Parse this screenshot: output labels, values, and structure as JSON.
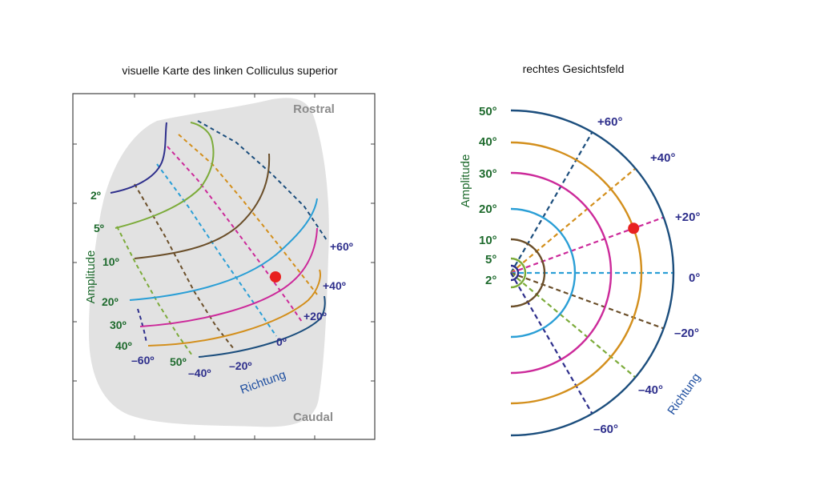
{
  "colors": {
    "amplitude_label": "#1f6b2e",
    "direction_label": "#2e2f8c",
    "axis_word": "#1f4fa0",
    "region_label": "#8c8c8c",
    "region_fill": "#e2e2e2",
    "marker": "#e8211f",
    "frame": "#444444"
  },
  "left_panel": {
    "title": "visuelle Karte des linken Colliculus superior",
    "rostral_label": "Rostral",
    "caudal_label": "Caudal",
    "amplitude_axis_label": "Amplitude",
    "direction_axis_label": "Richtung",
    "amplitude_labels": [
      "2º",
      "5º",
      "10º",
      "20º",
      "30º",
      "40º",
      "50º"
    ],
    "direction_labels": [
      "+60º",
      "+40º",
      "+20º",
      "0º",
      "–20º",
      "–40º",
      "–60º"
    ]
  },
  "right_panel": {
    "title": "rechtes Gesichtsfeld",
    "amplitude_axis_label": "Amplitude",
    "direction_axis_label": "Richtung",
    "amplitude_labels": [
      "50°",
      "40°",
      "30°",
      "20°",
      "10°",
      "5°",
      "2°"
    ],
    "direction_labels": [
      "+60°",
      "+40°",
      "+20°",
      "0°",
      "–20°",
      "–40°",
      "–60°"
    ]
  },
  "amplitude_series": [
    {
      "degrees": 2,
      "color": "#2e2f8c"
    },
    {
      "degrees": 5,
      "color": "#7cab3a"
    },
    {
      "degrees": 10,
      "color": "#6b4f2a"
    },
    {
      "degrees": 20,
      "color": "#2b9fd6"
    },
    {
      "degrees": 30,
      "color": "#cc2a9a"
    },
    {
      "degrees": 40,
      "color": "#d38f1c"
    },
    {
      "degrees": 50,
      "color": "#1c4e7d"
    }
  ],
  "direction_series": [
    {
      "degrees": 60,
      "color": "#1c4e7d"
    },
    {
      "degrees": 40,
      "color": "#d38f1c"
    },
    {
      "degrees": 20,
      "color": "#cc2a9a"
    },
    {
      "degrees": 0,
      "color": "#2b9fd6"
    },
    {
      "degrees": -20,
      "color": "#6b4f2a"
    },
    {
      "degrees": -40,
      "color": "#7cab3a"
    },
    {
      "degrees": -60,
      "color": "#2e2f8c"
    }
  ],
  "highlight": {
    "amplitude_degrees": 40,
    "direction_degrees": 20
  }
}
